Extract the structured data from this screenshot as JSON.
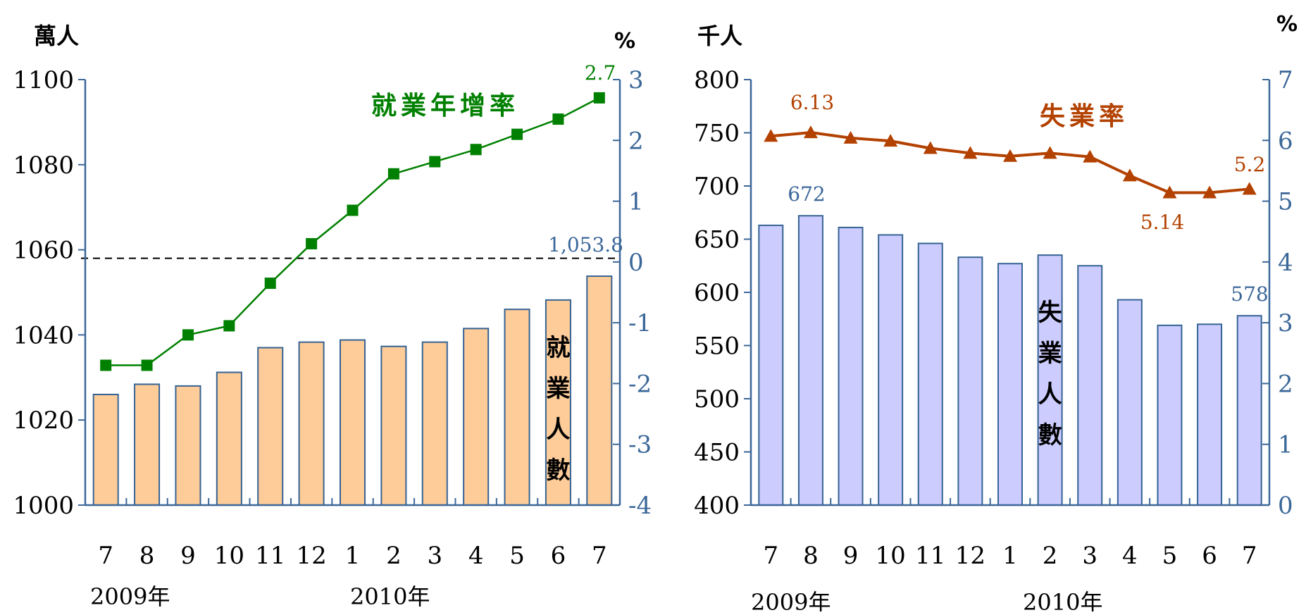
{
  "chart_data": [
    {
      "type": "bar",
      "categories": [
        "7",
        "8",
        "9",
        "10",
        "11",
        "12",
        "1",
        "2",
        "3",
        "4",
        "5",
        "6",
        "7"
      ],
      "year_labels": [
        "2009年",
        "2010年"
      ],
      "left_unit": "萬人",
      "right_unit": "%",
      "left_ylim": [
        1000,
        1100
      ],
      "left_yticks": [
        1000,
        1020,
        1040,
        1060,
        1080,
        1100
      ],
      "right_ylim": [
        -4,
        3
      ],
      "right_yticks": [
        -4,
        -3,
        -2,
        -1,
        0,
        1,
        2,
        3
      ],
      "bar_series": {
        "name": "就業人數",
        "values": [
          1026,
          1028.4,
          1028,
          1031.2,
          1037,
          1038.3,
          1038.8,
          1037.3,
          1038.3,
          1041.5,
          1046,
          1048.2,
          1053.8
        ]
      },
      "line_series": {
        "name": "就業年增率",
        "values": [
          -1.7,
          -1.7,
          -1.2,
          -1.05,
          -0.35,
          0.3,
          0.85,
          1.45,
          1.65,
          1.85,
          2.1,
          2.35,
          2.7
        ]
      },
      "reference_line": {
        "value": 1058,
        "style": "dashed"
      },
      "annotations": {
        "bar_last": "1,053.8",
        "line_last": "2.7"
      }
    },
    {
      "type": "bar",
      "categories": [
        "7",
        "8",
        "9",
        "10",
        "11",
        "12",
        "1",
        "2",
        "3",
        "4",
        "5",
        "6",
        "7"
      ],
      "year_labels": [
        "2009年",
        "2010年"
      ],
      "left_unit": "千人",
      "right_unit": "%",
      "left_ylim": [
        400,
        800
      ],
      "left_yticks": [
        400,
        450,
        500,
        550,
        600,
        650,
        700,
        750,
        800
      ],
      "right_ylim": [
        0,
        7
      ],
      "right_yticks": [
        0,
        1,
        2,
        3,
        4,
        5,
        6,
        7
      ],
      "bar_series": {
        "name": "失業人數",
        "values": [
          663,
          672,
          661,
          654,
          646,
          633,
          627,
          635,
          625,
          593,
          569,
          570,
          578
        ]
      },
      "line_series": {
        "name": "失業率",
        "values": [
          6.07,
          6.13,
          6.04,
          5.99,
          5.87,
          5.79,
          5.74,
          5.79,
          5.73,
          5.42,
          5.14,
          5.14,
          5.2
        ]
      },
      "annotations": {
        "bar_peak": "672",
        "bar_last": "578",
        "line_peak": "6.13",
        "line_low": "5.14",
        "line_last": "5.2"
      }
    }
  ],
  "colors": {
    "bar1": "#fdcc99",
    "bar2": "#ccccff",
    "bar_stroke": "#356393",
    "line1": "#008000",
    "line2": "#b34100",
    "axis": "#3b6798",
    "right_tick_text": "#3b6798",
    "annotation": "#3b6798"
  }
}
